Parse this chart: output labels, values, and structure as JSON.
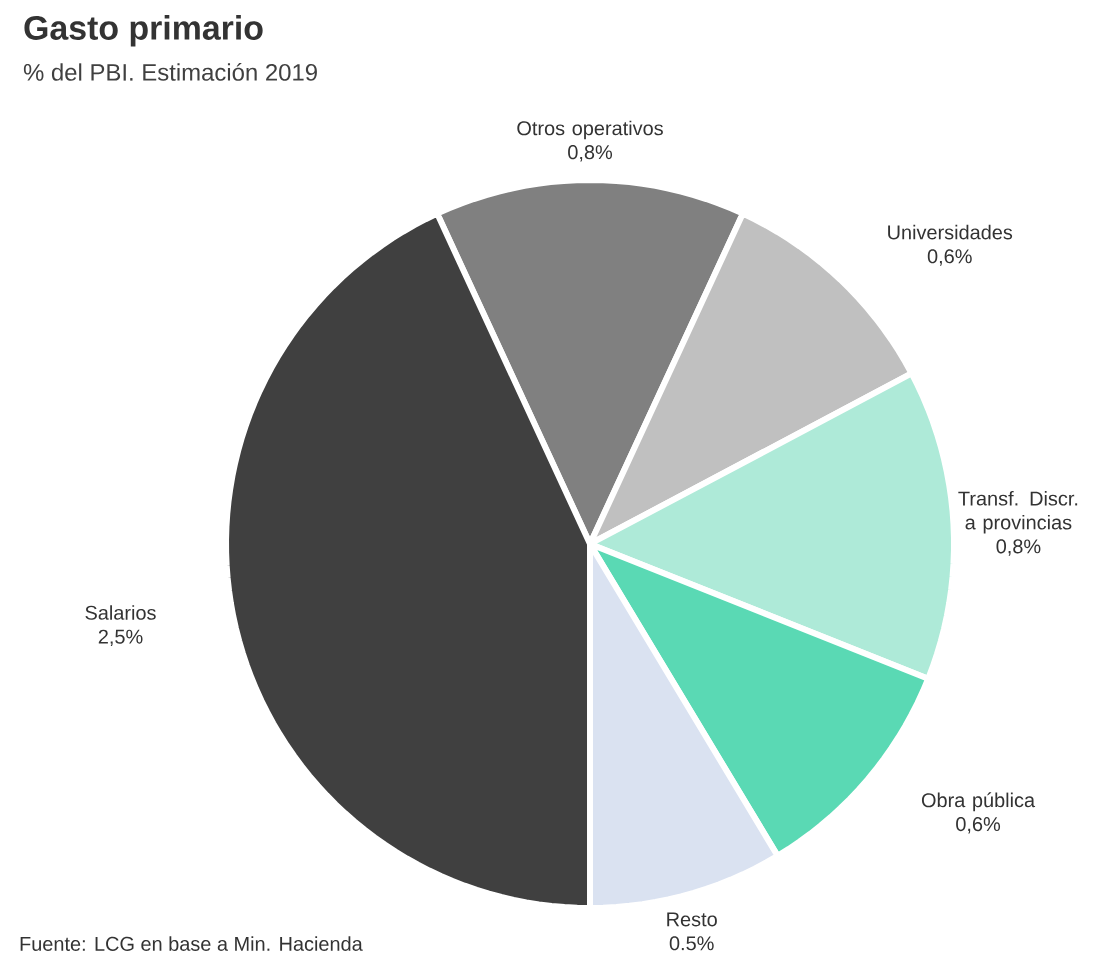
{
  "chart_data": {
    "type": "pie",
    "title": "Gasto primario",
    "subtitle": "% del PBI. Estimación 2019",
    "categories": [
      "Otros operativos",
      "Universidades",
      "Transf. Discr. a provincias",
      "Obra pública",
      "Resto",
      "Salarios"
    ],
    "values": [
      0.8,
      0.6,
      0.8,
      0.6,
      0.5,
      2.5
    ],
    "value_labels": [
      "0,8%",
      "0,6%",
      "0,8%",
      "0,6%",
      "0.5%",
      "2,5%"
    ],
    "colors": [
      "#808080",
      "#c0c0c0",
      "#aeead8",
      "#5ad9b4",
      "#dae2f1",
      "#404040"
    ],
    "annotations": [
      "Fuente: LCG en base a Min. Hacienda"
    ]
  }
}
